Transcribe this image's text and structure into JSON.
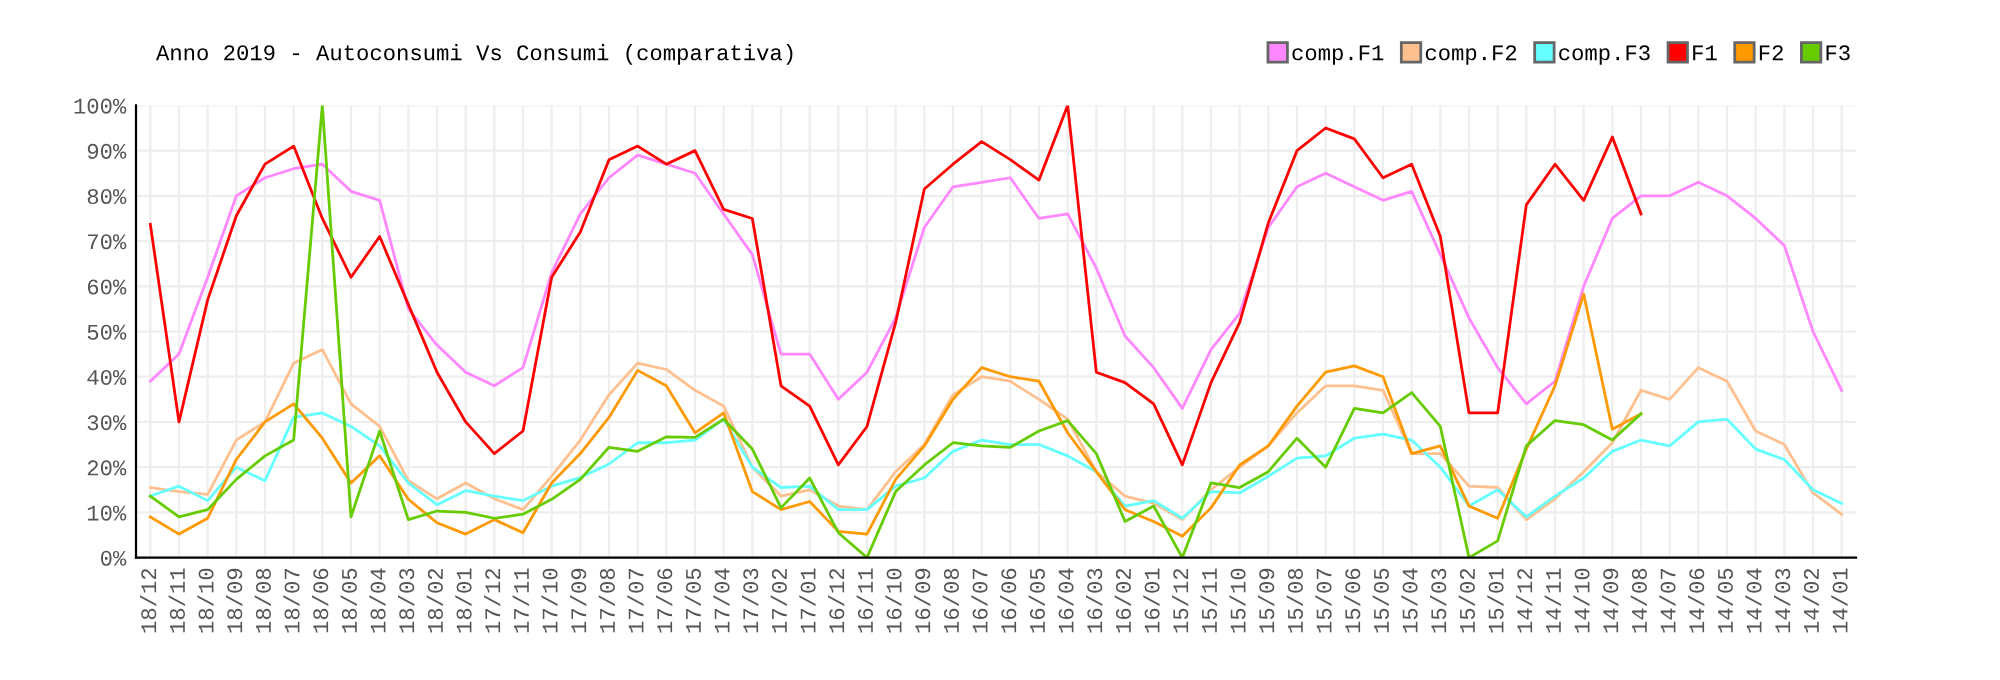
{
  "chart_data": {
    "type": "line",
    "title": "Anno 2019 - Autoconsumi Vs Consumi (comparativa)",
    "categories": [
      "18/12",
      "18/11",
      "18/10",
      "18/09",
      "18/08",
      "18/07",
      "18/06",
      "18/05",
      "18/04",
      "18/03",
      "18/02",
      "18/01",
      "17/12",
      "17/11",
      "17/10",
      "17/09",
      "17/08",
      "17/07",
      "17/06",
      "17/05",
      "17/04",
      "17/03",
      "17/02",
      "17/01",
      "16/12",
      "16/11",
      "16/10",
      "16/09",
      "16/08",
      "16/07",
      "16/06",
      "16/05",
      "16/04",
      "16/03",
      "16/02",
      "16/01",
      "15/12",
      "15/11",
      "15/10",
      "15/09",
      "15/08",
      "15/07",
      "15/06",
      "15/05",
      "15/04",
      "15/03",
      "15/02",
      "15/01",
      "14/12",
      "14/11",
      "14/10",
      "14/09",
      "14/08",
      "14/07",
      "14/06",
      "14/05",
      "14/04",
      "14/03",
      "14/02",
      "14/01"
    ],
    "series": [
      {
        "name": "comp.F1",
        "color": "#ff88ff",
        "values": [
          39,
          45,
          62,
          80,
          84,
          86,
          87,
          81,
          79,
          55,
          47,
          41,
          38,
          42,
          63,
          76,
          84,
          89,
          87,
          85,
          76,
          67,
          45,
          45,
          35,
          41,
          53,
          73,
          82,
          83,
          84,
          75,
          76,
          64,
          49,
          42,
          33,
          46,
          54,
          73,
          82,
          85,
          82,
          79,
          81,
          67,
          53,
          42,
          34,
          39,
          60,
          75,
          80,
          80,
          83,
          80,
          75,
          69,
          50,
          37
        ]
      },
      {
        "name": "comp.F2",
        "color": "#ffc090",
        "values": [
          15.5,
          14.6,
          14,
          26,
          30,
          43,
          46,
          34,
          29,
          17,
          13,
          16.5,
          13,
          10.6,
          18,
          26,
          36,
          43,
          41.6,
          37,
          33.5,
          20,
          13.6,
          15,
          11.4,
          10.6,
          19,
          25,
          36,
          40,
          39,
          35,
          30.6,
          19,
          13.6,
          12,
          8.4,
          15,
          20,
          24.7,
          32,
          38,
          38,
          37,
          23,
          23,
          15.8,
          15.5,
          8.4,
          13,
          19,
          25.4,
          37,
          35,
          42,
          39,
          28,
          25,
          14.3,
          9.6
        ]
      },
      {
        "name": "comp.F3",
        "color": "#66ffff",
        "values": [
          13.6,
          15.8,
          12.6,
          20,
          17,
          31,
          32,
          29,
          24.7,
          16.5,
          11.7,
          14.8,
          13.6,
          12.6,
          15.8,
          17.7,
          20.7,
          25.4,
          25.4,
          26,
          30.6,
          20,
          15.5,
          15.8,
          10.6,
          10.6,
          15.8,
          17.6,
          23.5,
          26,
          25,
          25,
          22.5,
          19,
          11.4,
          12.6,
          8.7,
          14.6,
          14.3,
          18,
          22,
          22.5,
          26.4,
          27.3,
          26,
          20,
          11.4,
          15,
          9,
          13.6,
          17.6,
          23.5,
          26,
          24.7,
          30,
          30.6,
          24,
          21.7,
          15,
          12
        ]
      },
      {
        "name": "F1",
        "color": "#ff0000",
        "values": [
          73.7,
          30,
          57,
          75.6,
          87,
          91,
          75,
          62,
          71,
          56,
          41,
          30,
          23,
          28,
          62,
          72,
          88,
          91,
          87,
          90,
          77,
          75,
          38,
          33.5,
          20.5,
          29,
          52,
          81.5,
          87,
          92,
          88,
          83.5,
          100,
          41,
          38.7,
          34,
          20.5,
          38.7,
          52,
          74,
          90,
          95,
          92.6,
          84,
          87,
          71,
          32,
          32,
          78,
          87,
          79,
          93,
          76,
          null,
          null,
          null,
          null,
          null,
          null,
          null
        ]
      },
      {
        "name": "F2",
        "color": "#ff9900",
        "values": [
          9,
          5.2,
          8.7,
          21.7,
          30,
          34,
          26.4,
          16.5,
          22.5,
          12.9,
          7.7,
          5.2,
          8.4,
          5.5,
          16.5,
          23,
          31,
          41.4,
          38,
          27.6,
          32,
          14.6,
          10.6,
          12.4,
          5.8,
          5.2,
          17.3,
          24.7,
          35,
          42,
          40,
          39,
          27.6,
          19,
          10.6,
          8,
          4.7,
          11,
          20.5,
          24.7,
          33.5,
          41,
          42.4,
          40,
          23,
          24.7,
          11.4,
          8.7,
          24,
          38,
          58.3,
          28.4,
          31.8,
          null,
          null,
          null,
          null,
          null,
          null,
          null
        ]
      },
      {
        "name": "F3",
        "color": "#66cc00",
        "values": [
          13.6,
          9,
          10.6,
          17.3,
          22.5,
          26,
          100,
          9,
          28,
          8.4,
          10.3,
          10,
          8.7,
          9.6,
          12.9,
          17.3,
          24.4,
          23.5,
          26.7,
          26.6,
          30.6,
          24,
          11,
          17.6,
          5.5,
          0,
          14.6,
          20.5,
          25.4,
          24.7,
          24.4,
          28,
          30.3,
          23,
          8,
          11.4,
          0,
          16.5,
          15.5,
          19,
          26.4,
          20,
          33,
          32,
          36.5,
          29,
          0,
          3.7,
          24.7,
          30.3,
          29.4,
          26,
          31.8,
          null,
          null,
          null,
          null,
          null,
          null,
          null
        ]
      }
    ],
    "ylim": [
      0,
      100
    ],
    "yticks": [
      {
        "value": 0,
        "label": "0%"
      },
      {
        "value": 10,
        "label": "10%"
      },
      {
        "value": 20,
        "label": "20%"
      },
      {
        "value": 30,
        "label": "30%"
      },
      {
        "value": 40,
        "label": "40%"
      },
      {
        "value": 50,
        "label": "50%"
      },
      {
        "value": 60,
        "label": "60%"
      },
      {
        "value": 70,
        "label": "70%"
      },
      {
        "value": 80,
        "label": "80%"
      },
      {
        "value": 90,
        "label": "90%"
      },
      {
        "value": 100,
        "label": "100%"
      }
    ],
    "grid": true,
    "legend": "top right",
    "marker": "none",
    "line_style": "solid"
  }
}
